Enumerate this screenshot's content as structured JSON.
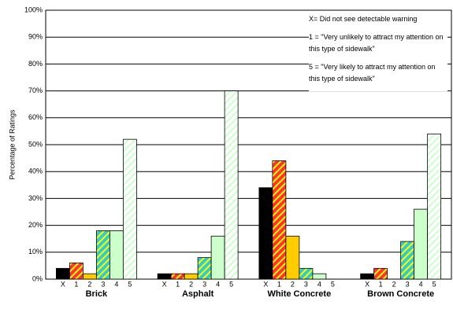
{
  "chart_data": {
    "type": "bar",
    "y_label": "Percentage of Ratings",
    "categories": [
      "Brick",
      "Asphalt",
      "White Concrete",
      "Brown Concrete"
    ],
    "series": [
      {
        "name": "X",
        "color": "#000000",
        "values": [
          4,
          2,
          34,
          2
        ]
      },
      {
        "name": "1",
        "color": "#ff3333",
        "pattern": "h1",
        "values": [
          6,
          2,
          44,
          4
        ]
      },
      {
        "name": "2",
        "color": "#ffcc00",
        "values": [
          2,
          2,
          16,
          0
        ]
      },
      {
        "name": "3",
        "color": "#33cccc",
        "pattern": "h3",
        "values": [
          18,
          8,
          4,
          14
        ]
      },
      {
        "name": "4",
        "color": "#ccffcc",
        "values": [
          18,
          16,
          2,
          26
        ]
      },
      {
        "name": "5",
        "color": "#ffffff",
        "pattern": "h5",
        "values": [
          52,
          70,
          0,
          54
        ]
      }
    ],
    "ylim": [
      0,
      100
    ],
    "yticks": [
      {
        "value": 0,
        "label": "0%"
      },
      {
        "value": 10,
        "label": "10%"
      },
      {
        "value": 20,
        "label": "20%"
      },
      {
        "value": 30,
        "label": "30%"
      },
      {
        "value": 40,
        "label": "40%"
      },
      {
        "value": 50,
        "label": "50%"
      },
      {
        "value": 60,
        "label": "60%"
      },
      {
        "value": 70,
        "label": "70%"
      },
      {
        "value": 80,
        "label": "80%"
      },
      {
        "value": 90,
        "label": "90%"
      },
      {
        "value": 100,
        "label": "100%"
      }
    ],
    "grid": true,
    "annotations": [
      "X= Did not see detectable warning",
      "1 = \"Very unlikely to attract my attention on this type of sidewalk\"",
      "5 = \"Very likely to attract my attention on this type of sidewalk\""
    ]
  }
}
